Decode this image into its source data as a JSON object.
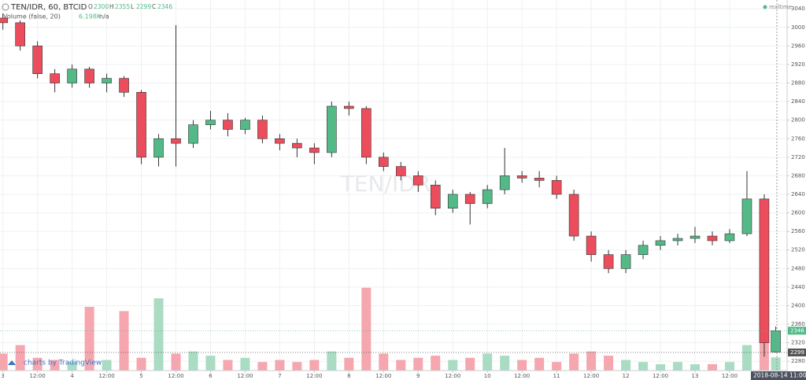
{
  "header": {
    "symbol": "TEN/IDR, 60, BTCID",
    "ohlc_labels": [
      "O",
      "H",
      "L",
      "C"
    ],
    "ohlc": [
      2300,
      2355,
      2299,
      2346
    ],
    "volume_study": "Volume (false, 20)",
    "volume_value": {
      "value": 6198,
      "label": "6.198K"
    },
    "volume_na": "n/a",
    "status": "realtime",
    "branding": "charts by TradingView",
    "watermark": "TEN/IDR",
    "time_label": "2018-08-14 11:00"
  },
  "chart_data": {
    "type": "candlestick",
    "up_color": "#53b987",
    "down_color": "#eb4d5c",
    "volume_up_color": "#a9dcc3",
    "volume_down_color": "#f5a6ae",
    "x": [
      0,
      6,
      12,
      18,
      24,
      30,
      36,
      42,
      48,
      54,
      60,
      66,
      72,
      78,
      84,
      90,
      96,
      102,
      108,
      114,
      120,
      126,
      132,
      138,
      144,
      150,
      156,
      162,
      168,
      174,
      180,
      186,
      192,
      198,
      204,
      210,
      216,
      222,
      228,
      234,
      240,
      246,
      252,
      258,
      264,
      268
    ],
    "open": [
      3020,
      3010,
      2960,
      2900,
      2880,
      2910,
      2880,
      2890,
      2860,
      2720,
      2760,
      2750,
      2790,
      2800,
      2780,
      2800,
      2760,
      2750,
      2740,
      2730,
      2830,
      2825,
      2720,
      2700,
      2680,
      2660,
      2610,
      2640,
      2620,
      2650,
      2680,
      2675,
      2670,
      2640,
      2550,
      2510,
      2480,
      2510,
      2530,
      2540,
      2545,
      2550,
      2540,
      2555,
      2630,
      2300
    ],
    "high": [
      3030,
      3015,
      2970,
      2910,
      2920,
      2915,
      2900,
      2895,
      2865,
      2770,
      3005,
      2800,
      2820,
      2815,
      2805,
      2810,
      2770,
      2760,
      2750,
      2840,
      2840,
      2830,
      2730,
      2710,
      2690,
      2670,
      2650,
      2645,
      2660,
      2740,
      2690,
      2690,
      2680,
      2650,
      2560,
      2520,
      2520,
      2540,
      2550,
      2555,
      2570,
      2560,
      2565,
      2690,
      2640,
      2355
    ],
    "low": [
      2995,
      2950,
      2890,
      2860,
      2870,
      2870,
      2860,
      2850,
      2705,
      2700,
      2700,
      2740,
      2780,
      2765,
      2770,
      2750,
      2735,
      2720,
      2705,
      2720,
      2810,
      2705,
      2690,
      2670,
      2645,
      2595,
      2600,
      2575,
      2610,
      2640,
      2665,
      2655,
      2630,
      2540,
      2495,
      2470,
      2470,
      2500,
      2520,
      2530,
      2535,
      2530,
      2535,
      2550,
      2290,
      2299
    ],
    "close": [
      3010,
      2960,
      2900,
      2880,
      2910,
      2880,
      2890,
      2860,
      2720,
      2760,
      2750,
      2790,
      2800,
      2780,
      2800,
      2760,
      2750,
      2740,
      2730,
      2830,
      2825,
      2720,
      2700,
      2680,
      2660,
      2610,
      2640,
      2620,
      2650,
      2680,
      2675,
      2670,
      2640,
      2550,
      2510,
      2480,
      2510,
      2530,
      2540,
      2545,
      2550,
      2540,
      2555,
      2630,
      2320,
      2346
    ],
    "volume": [
      8000,
      12000,
      6000,
      5000,
      4000,
      30000,
      5000,
      28000,
      6000,
      34000,
      8000,
      9000,
      7000,
      5000,
      6000,
      4000,
      5000,
      4000,
      5000,
      9000,
      6000,
      39000,
      8000,
      5000,
      6000,
      7000,
      5000,
      6000,
      8000,
      7000,
      5000,
      6000,
      4000,
      8000,
      9000,
      7000,
      5000,
      4000,
      3000,
      4000,
      3000,
      3000,
      4000,
      12000,
      15000,
      6198
    ],
    "volume_lim": [
      0,
      50000
    ],
    "xlim": [
      -1,
      269.2
    ],
    "xticks": [
      {
        "value": 0,
        "label": "3"
      },
      {
        "value": 12,
        "label": "12:00"
      },
      {
        "value": 24,
        "label": "4"
      },
      {
        "value": 36,
        "label": "12:00"
      },
      {
        "value": 48,
        "label": "5"
      },
      {
        "value": 60,
        "label": "12:00"
      },
      {
        "value": 72,
        "label": "6"
      },
      {
        "value": 84,
        "label": "12:00"
      },
      {
        "value": 96,
        "label": "7"
      },
      {
        "value": 108,
        "label": "12:00"
      },
      {
        "value": 120,
        "label": "8"
      },
      {
        "value": 132,
        "label": "12:00"
      },
      {
        "value": 144,
        "label": "9"
      },
      {
        "value": 156,
        "label": "12:00"
      },
      {
        "value": 168,
        "label": "10"
      },
      {
        "value": 180,
        "label": "12:00"
      },
      {
        "value": 192,
        "label": "11"
      },
      {
        "value": 204,
        "label": "12:00"
      },
      {
        "value": 216,
        "label": "12"
      },
      {
        "value": 228,
        "label": "12:00"
      },
      {
        "value": 240,
        "label": "13"
      },
      {
        "value": 252,
        "label": "12:00"
      }
    ],
    "ylim": [
      2260,
      3059
    ],
    "yticks": [
      2280,
      2320,
      2360,
      2400,
      2440,
      2480,
      2520,
      2560,
      2600,
      2640,
      2680,
      2720,
      2760,
      2800,
      2840,
      2880,
      2920,
      2960,
      3000,
      3040
    ],
    "price_markers": [
      {
        "value": 2346,
        "color": "#53b987"
      },
      {
        "value": 2299,
        "color": "#555555"
      }
    ],
    "grid": true
  }
}
